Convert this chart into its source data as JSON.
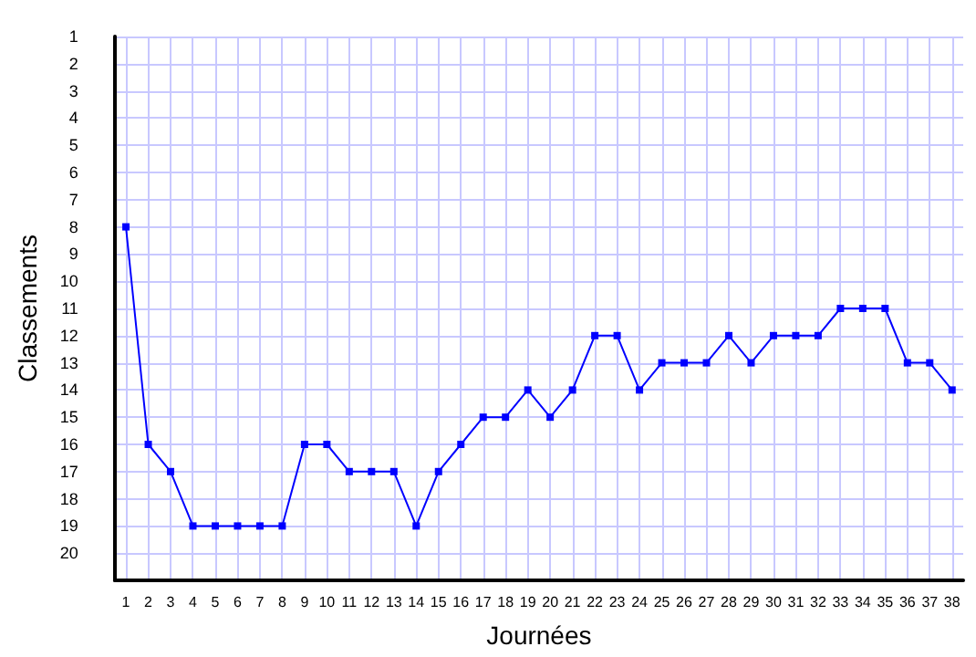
{
  "chart_data": {
    "type": "line",
    "xlabel": "Journées",
    "ylabel": "Classements",
    "x": [
      1,
      2,
      3,
      4,
      5,
      6,
      7,
      8,
      9,
      10,
      11,
      12,
      13,
      14,
      15,
      16,
      17,
      18,
      19,
      20,
      21,
      22,
      23,
      24,
      25,
      26,
      27,
      28,
      29,
      30,
      31,
      32,
      33,
      34,
      35,
      36,
      37,
      38
    ],
    "series": [
      {
        "color": "#0000ff",
        "values": [
          8,
          16,
          17,
          19,
          19,
          19,
          19,
          19,
          16,
          16,
          17,
          17,
          17,
          19,
          17,
          16,
          15,
          15,
          14,
          15,
          14,
          12,
          12,
          14,
          13,
          13,
          13,
          12,
          13,
          12,
          12,
          12,
          11,
          11,
          11,
          13,
          13,
          14
        ]
      }
    ],
    "xlim": [
      0.5,
      38.5
    ],
    "xticks": [
      1,
      2,
      3,
      4,
      5,
      6,
      7,
      8,
      9,
      10,
      11,
      12,
      13,
      14,
      15,
      16,
      17,
      18,
      19,
      20,
      21,
      22,
      23,
      24,
      25,
      26,
      27,
      28,
      29,
      30,
      31,
      32,
      33,
      34,
      35,
      36,
      37,
      38
    ],
    "ylim": [
      21,
      1
    ],
    "yticks": [
      1,
      2,
      3,
      4,
      5,
      6,
      7,
      8,
      9,
      10,
      11,
      12,
      13,
      14,
      15,
      16,
      17,
      18,
      19,
      20,
      {
        "value": 21,
        "label": null
      }
    ],
    "grid": true,
    "marker": "square",
    "line_style": "solid"
  }
}
